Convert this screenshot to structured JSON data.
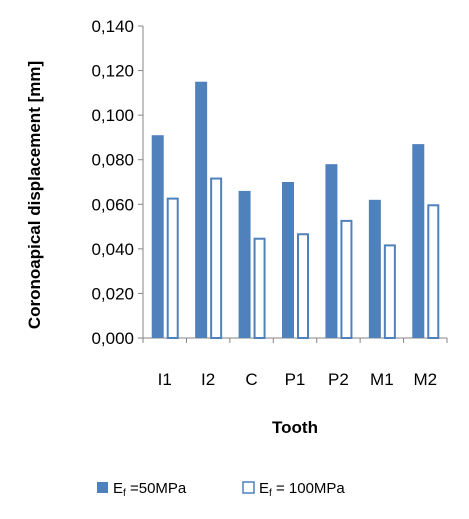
{
  "chart_data": {
    "type": "bar",
    "categories": [
      "I1",
      "I2",
      "C",
      "P1",
      "P2",
      "M1",
      "M2"
    ],
    "series": [
      {
        "name": "E<sub>f</sub> =50MPa",
        "legend_main": "E",
        "legend_sub": "f",
        "legend_rest": " =50MPa",
        "color": "#4F81BD",
        "filled": true,
        "values": [
          0.091,
          0.115,
          0.066,
          0.07,
          0.078,
          0.062,
          0.087
        ]
      },
      {
        "name": "E<sub>f</sub> = 100MPa",
        "legend_main": "E",
        "legend_sub": "f",
        "legend_rest": " = 100MPa",
        "color": "#4F81BD",
        "filled": false,
        "values": [
          0.063,
          0.072,
          0.045,
          0.047,
          0.053,
          0.042,
          0.06
        ]
      }
    ],
    "xlabel": "Tooth",
    "ylabel": "Coronoapical displacement [mm]",
    "ylim": [
      0,
      0.14
    ],
    "yticks": [
      "0,000",
      "0,020",
      "0,040",
      "0,060",
      "0,080",
      "0,100",
      "0,120",
      "0,140"
    ],
    "grid": false,
    "legend_position": "bottom"
  }
}
